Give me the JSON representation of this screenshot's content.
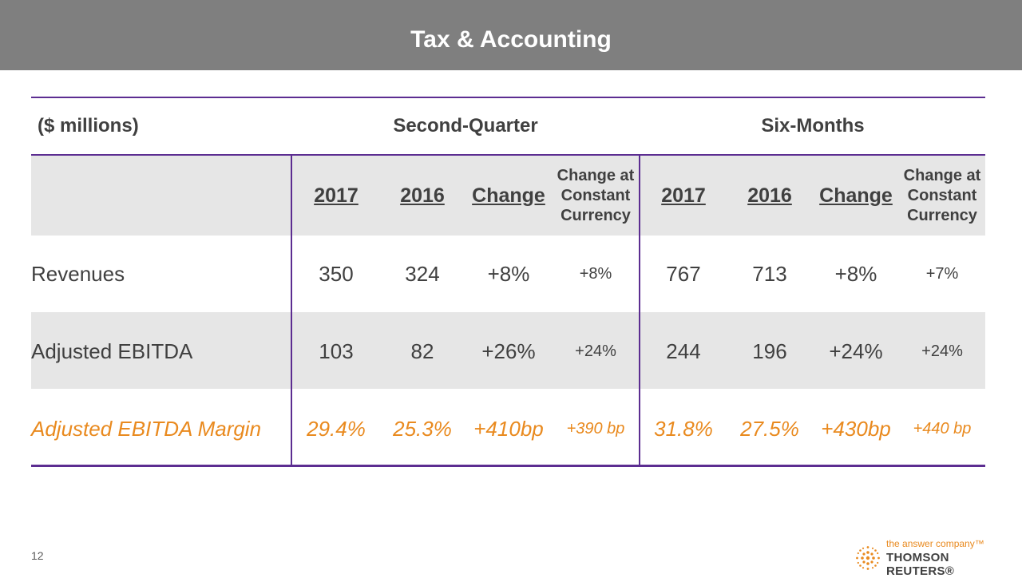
{
  "header": {
    "title": "Tax & Accounting"
  },
  "table": {
    "units_label": "($ millions)",
    "groups": [
      {
        "label": "Second-Quarter"
      },
      {
        "label": "Six-Months"
      }
    ],
    "columns": {
      "year_a": "2017",
      "year_b": "2016",
      "change": "Change",
      "change_ccy": "Change at Constant Currency"
    },
    "rows": [
      {
        "label": "Revenues",
        "q": [
          "350",
          "324",
          "+8%",
          "+8%"
        ],
        "h": [
          "767",
          "713",
          "+8%",
          "+7%"
        ]
      },
      {
        "label": "Adjusted EBITDA",
        "q": [
          "103",
          "82",
          "+26%",
          "+24%"
        ],
        "h": [
          "244",
          "196",
          "+24%",
          "+24%"
        ]
      },
      {
        "label": "Adjusted EBITDA Margin",
        "q": [
          "29.4%",
          "25.3%",
          "+410bp",
          "+390 bp"
        ],
        "h": [
          "31.8%",
          "27.5%",
          "+430bp",
          "+440 bp"
        ]
      }
    ]
  },
  "footer": {
    "page_number": "12",
    "brand_tagline": "the answer company™",
    "brand_name": "THOMSON REUTERS®"
  },
  "colors": {
    "accent": "#5c2d91",
    "highlight": "#e98a1f",
    "header_bg": "#7f7f7f",
    "shade": "#e6e6e6"
  }
}
